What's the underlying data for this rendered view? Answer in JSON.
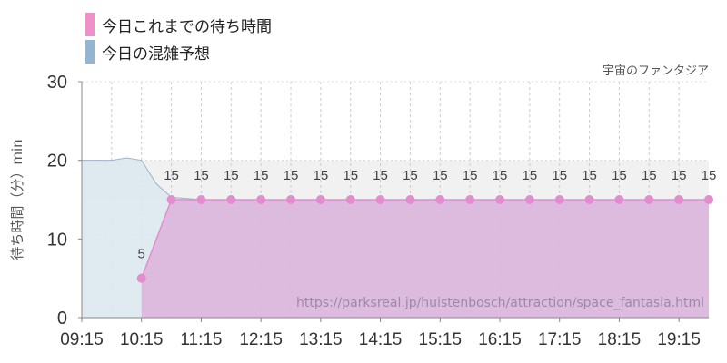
{
  "colors": {
    "actual": "#e38cd0",
    "actual_fill": "#dcb3dc",
    "forecast_fill": "#dde8f0",
    "forecast_line": "#9db4c7",
    "band": "#f1f1f1",
    "axis_text": "#333333",
    "grid": "#cccccc"
  },
  "legend": [
    {
      "label": "今日これまでの待ち時間",
      "color": "#f090c8"
    },
    {
      "label": "今日の混雑予想",
      "color": "#93b5d2"
    }
  ],
  "chart_data": {
    "type": "area",
    "attraction_label": "宇宙のファンタジア",
    "watermark": "https://parksreal.jp/huistenbosch/attraction/space_fantasia.html",
    "ylabel": "待ち時間（分）min",
    "ylim": [
      0,
      30
    ],
    "yticks": [
      0,
      10,
      20,
      30
    ],
    "xlim": [
      "09:15",
      "19:45"
    ],
    "xticks": [
      "09:15",
      "10:15",
      "11:15",
      "12:15",
      "13:15",
      "14:15",
      "15:15",
      "16:15",
      "17:15",
      "18:15",
      "19:15"
    ],
    "grid": true,
    "series": [
      {
        "name": "今日これまでの待ち時間",
        "x": [
          "10:15",
          "10:45",
          "11:15",
          "11:45",
          "12:15",
          "12:45",
          "13:15",
          "13:45",
          "14:15",
          "14:45",
          "15:15",
          "15:45",
          "16:15",
          "16:45",
          "17:15",
          "17:45",
          "18:15",
          "18:45",
          "19:15",
          "19:45"
        ],
        "values": [
          5,
          15,
          15,
          15,
          15,
          15,
          15,
          15,
          15,
          15,
          15,
          15,
          15,
          15,
          15,
          15,
          15,
          15,
          15,
          15
        ],
        "data_labels": [
          "5",
          "15",
          "15",
          "15",
          "15",
          "15",
          "15",
          "15",
          "15",
          "15",
          "15",
          "15",
          "15",
          "15",
          "15",
          "15",
          "15",
          "15",
          "15",
          "15"
        ]
      },
      {
        "name": "今日の混雑予想",
        "x": [
          "09:15",
          "09:30",
          "09:45",
          "10:00",
          "10:15",
          "10:30",
          "10:45",
          "11:15",
          "19:45"
        ],
        "values": [
          20,
          20,
          20,
          20.3,
          20,
          17,
          15.3,
          15,
          15
        ]
      }
    ]
  }
}
